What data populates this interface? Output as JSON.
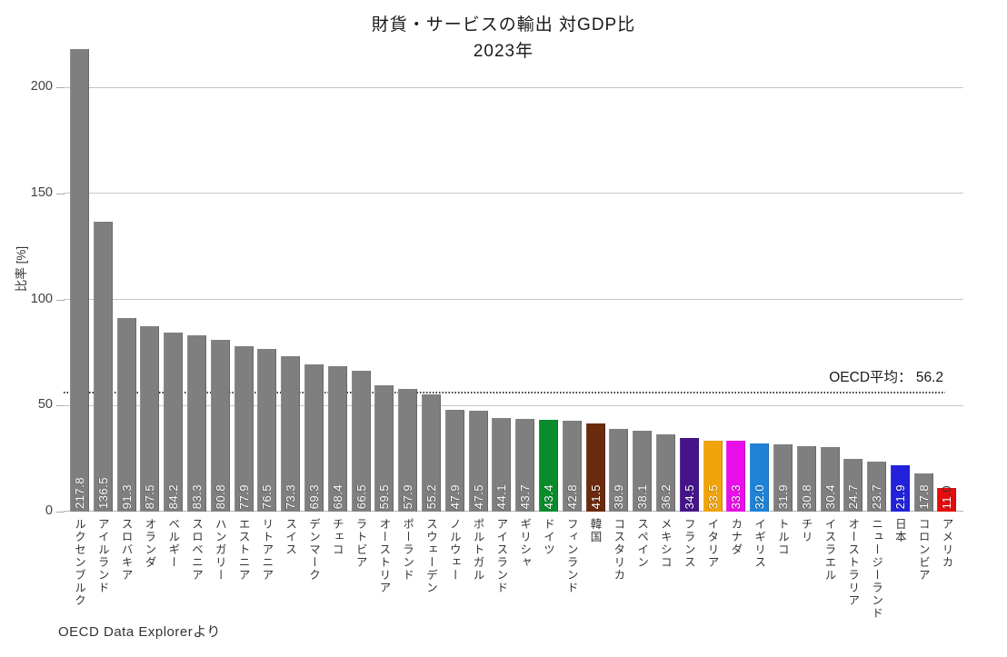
{
  "chart_data": {
    "type": "bar",
    "title": "財貨・サービスの輸出 対GDP比",
    "subtitle": "2023年",
    "ylabel": "比率 [%]",
    "yticks": [
      {
        "label": "0",
        "value": 0
      },
      {
        "label": "50",
        "value": 50
      },
      {
        "label": "100",
        "value": 100
      },
      {
        "label": "150",
        "value": 150
      },
      {
        "label": "200",
        "value": 200
      }
    ],
    "ylim": [
      0,
      241
    ],
    "grid": "horizontal",
    "legend": "none",
    "avg_line": {
      "label": "OECD平均： 56.2",
      "value": 56.2,
      "style": "dotted"
    },
    "source": "OECD Data Explorerより",
    "default_color": "#7f7f7f",
    "bars": [
      {
        "category": "ルクセンブルク",
        "value": 217.8,
        "label": "217.8"
      },
      {
        "category": "アイルランド",
        "value": 136.5,
        "label": "136.5"
      },
      {
        "category": "スロバキア",
        "value": 91.3,
        "label": "91.3"
      },
      {
        "category": "オランダ",
        "value": 87.5,
        "label": "87.5"
      },
      {
        "category": "ベルギー",
        "value": 84.2,
        "label": "84.2"
      },
      {
        "category": "スロベニア",
        "value": 83.3,
        "label": "83.3"
      },
      {
        "category": "ハンガリー",
        "value": 80.8,
        "label": "80.8"
      },
      {
        "category": "エストニア",
        "value": 77.9,
        "label": "77.9"
      },
      {
        "category": "リトアニア",
        "value": 76.5,
        "label": "76.5"
      },
      {
        "category": "スイス",
        "value": 73.3,
        "label": "73.3"
      },
      {
        "category": "デンマーク",
        "value": 69.3,
        "label": "69.3"
      },
      {
        "category": "チェコ",
        "value": 68.4,
        "label": "68.4"
      },
      {
        "category": "ラトビア",
        "value": 66.5,
        "label": "66.5"
      },
      {
        "category": "オーストリア",
        "value": 59.5,
        "label": "59.5"
      },
      {
        "category": "ポーランド",
        "value": 57.9,
        "label": "57.9"
      },
      {
        "category": "スウェーデン",
        "value": 55.2,
        "label": "55.2"
      },
      {
        "category": "ノルウェー",
        "value": 47.9,
        "label": "47.9"
      },
      {
        "category": "ポルトガル",
        "value": 47.5,
        "label": "47.5"
      },
      {
        "category": "アイスランド",
        "value": 44.1,
        "label": "44.1"
      },
      {
        "category": "ギリシャ",
        "value": 43.7,
        "label": "43.7"
      },
      {
        "category": "ドイツ",
        "value": 43.4,
        "label": "43.4",
        "color": "#0a8c2d"
      },
      {
        "category": "フィンランド",
        "value": 42.8,
        "label": "42.8"
      },
      {
        "category": "韓国",
        "value": 41.5,
        "label": "41.5",
        "color": "#6b2a0e"
      },
      {
        "category": "コスタリカ",
        "value": 38.9,
        "label": "38.9"
      },
      {
        "category": "スペイン",
        "value": 38.1,
        "label": "38.1"
      },
      {
        "category": "メキシコ",
        "value": 36.2,
        "label": "36.2"
      },
      {
        "category": "フランス",
        "value": 34.5,
        "label": "34.5",
        "color": "#45148a"
      },
      {
        "category": "イタリア",
        "value": 33.5,
        "label": "33.5",
        "color": "#f0a30a"
      },
      {
        "category": "カナダ",
        "value": 33.3,
        "label": "33.3",
        "color": "#ea0fea"
      },
      {
        "category": "イギリス",
        "value": 32.0,
        "label": "32.0",
        "color": "#1e82d6"
      },
      {
        "category": "トルコ",
        "value": 31.9,
        "label": "31.9"
      },
      {
        "category": "チリ",
        "value": 30.8,
        "label": "30.8"
      },
      {
        "category": "イスラエル",
        "value": 30.4,
        "label": "30.4"
      },
      {
        "category": "オーストラリア",
        "value": 24.7,
        "label": "24.7"
      },
      {
        "category": "ニュージーランド",
        "value": 23.7,
        "label": "23.7"
      },
      {
        "category": "日本",
        "value": 21.9,
        "label": "21.9",
        "color": "#2222db"
      },
      {
        "category": "コロンビア",
        "value": 17.8,
        "label": "17.8"
      },
      {
        "category": "アメリカ",
        "value": 11.0,
        "label": "11.0",
        "color": "#e60c0c",
        "label_split": 2
      }
    ]
  }
}
